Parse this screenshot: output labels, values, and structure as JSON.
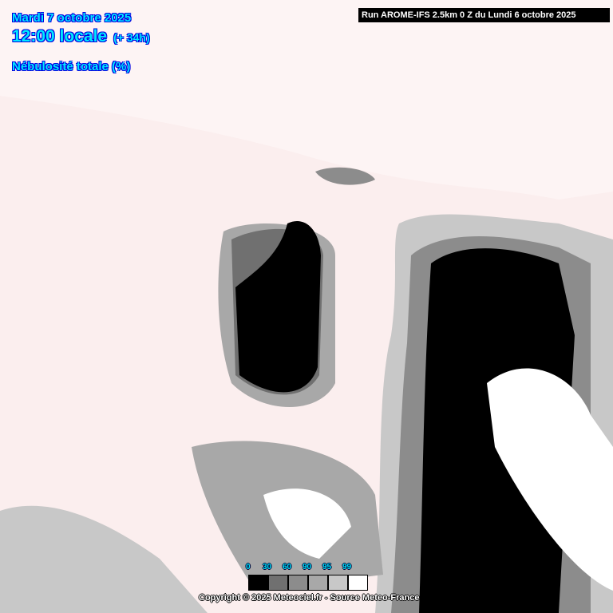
{
  "header": {
    "date": "Mardi 7 octobre 2025",
    "time": "12:00 locale",
    "lead": "(+ 34h)",
    "parameter": "Nébulosité totale (%)",
    "run": "Run AROME-IFS 2.5km 0 Z du Lundi 6 octobre 2025"
  },
  "legend": {
    "labels": [
      "0",
      "30",
      "60",
      "90",
      "95",
      "99"
    ],
    "colors": [
      "#000000",
      "#707070",
      "#8c8c8c",
      "#a8a8a8",
      "#c8c8c8",
      "#ffffff"
    ]
  },
  "colors": {
    "clear_sky": "#fbeeee",
    "title_text": "#00e8ff",
    "title_outline": "#0000e0"
  },
  "footer": {
    "copyright": "Copyright © 2025 Meteociel.fr - Source Meteo-France"
  }
}
